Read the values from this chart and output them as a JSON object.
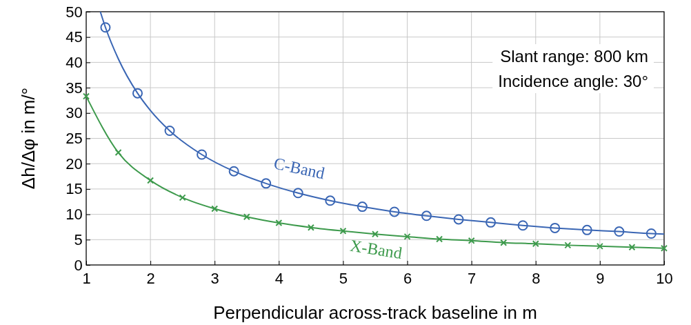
{
  "chart_data": {
    "type": "line",
    "xlabel": "Perpendicular across-track baseline in m",
    "ylabel": "Δh/Δφ in m/°",
    "xlim": [
      1,
      10
    ],
    "ylim": [
      0,
      50
    ],
    "xticks": [
      1,
      2,
      3,
      4,
      5,
      6,
      7,
      8,
      9,
      10
    ],
    "yticks": [
      0,
      5,
      10,
      15,
      20,
      25,
      30,
      35,
      40,
      45,
      50
    ],
    "grid": true,
    "annotations": [
      "Slant range: 800 km",
      "Incidence angle: 30°"
    ],
    "series": [
      {
        "name": "C-Band",
        "type": "line",
        "marker": "none",
        "color": "#3a66b4",
        "x": [
          1.22,
          1.3,
          1.5,
          1.8,
          2.0,
          2.3,
          2.8,
          3.3,
          3.8,
          4.3,
          4.8,
          5.3,
          5.8,
          6.3,
          6.8,
          7.3,
          7.8,
          8.3,
          8.8,
          9.3,
          9.8,
          10
        ],
        "values": [
          50.0,
          46.9,
          40.7,
          33.9,
          30.5,
          26.5,
          21.8,
          18.5,
          16.1,
          14.2,
          12.7,
          11.5,
          10.5,
          9.7,
          9.0,
          8.4,
          7.8,
          7.3,
          6.9,
          6.6,
          6.2,
          6.1
        ]
      },
      {
        "type": "scatter",
        "marker": "circle",
        "color": "#3a66b4",
        "x": [
          1.3,
          1.8,
          2.3,
          2.8,
          3.3,
          3.8,
          4.3,
          4.8,
          5.3,
          5.8,
          6.3,
          6.8,
          7.3,
          7.8,
          8.3,
          8.8,
          9.3,
          9.8
        ],
        "values": [
          46.9,
          33.9,
          26.5,
          21.8,
          18.5,
          16.1,
          14.2,
          12.7,
          11.5,
          10.5,
          9.7,
          9.0,
          8.4,
          7.8,
          7.3,
          6.9,
          6.6,
          6.2
        ]
      },
      {
        "name": "X-Band",
        "type": "line",
        "marker": "cross",
        "color": "#3d9a4c",
        "x": [
          1,
          1.5,
          2,
          2.5,
          3,
          3.5,
          4,
          4.5,
          5,
          5.5,
          6,
          6.5,
          7,
          7.5,
          8,
          8.5,
          9,
          9.5,
          10
        ],
        "values": [
          33.3,
          22.2,
          16.7,
          13.3,
          11.1,
          9.5,
          8.3,
          7.4,
          6.7,
          6.1,
          5.6,
          5.1,
          4.8,
          4.4,
          4.2,
          3.9,
          3.7,
          3.5,
          3.3
        ]
      }
    ]
  }
}
